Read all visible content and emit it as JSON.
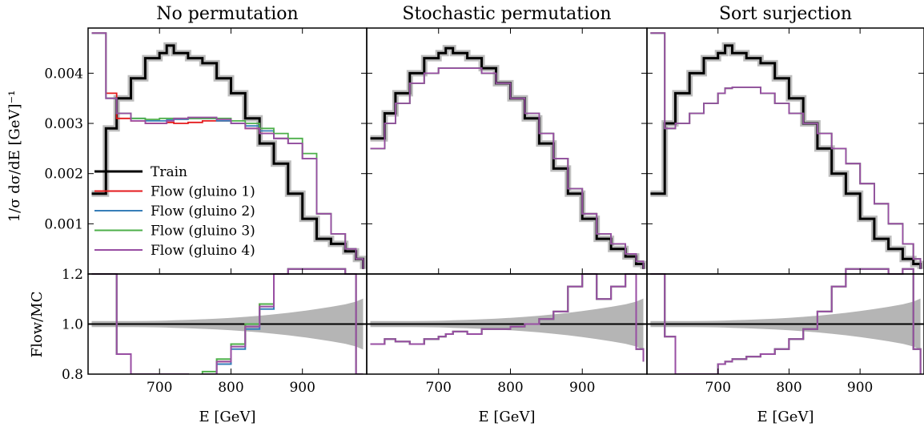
{
  "figure": {
    "ylabel_main": "1/σ dσ/dE [GeV]⁻¹",
    "ylabel_ratio": "Flow/MC",
    "xlabel": "E [GeV]"
  },
  "legend": {
    "entries": [
      {
        "label": "Train",
        "color": "#000000"
      },
      {
        "label": "Flow (gluino 1)",
        "color": "#e41a1c"
      },
      {
        "label": "Flow (gluino 2)",
        "color": "#377eb8"
      },
      {
        "label": "Flow (gluino 3)",
        "color": "#4daf4a"
      },
      {
        "label": "Flow (gluino 4)",
        "color": "#984ea3"
      }
    ]
  },
  "chart_data": [
    {
      "type": "line",
      "title": "No permutation",
      "xlabel": "E_g̃ [GeV]",
      "ylabel": "1/σ dσ/dE_g̃ [GeV]^-1",
      "xlim": [
        600,
        990
      ],
      "ylim": [
        0,
        0.0049
      ],
      "ratio_ylim": [
        0.8,
        1.2
      ],
      "x": [
        605,
        625,
        640,
        660,
        680,
        700,
        710,
        720,
        740,
        760,
        780,
        800,
        820,
        840,
        860,
        880,
        900,
        920,
        940,
        960,
        975,
        985
      ],
      "series": [
        {
          "name": "Train",
          "values": [
            0.0016,
            0.0029,
            0.0035,
            0.0039,
            0.0043,
            0.0044,
            0.00455,
            0.0044,
            0.0043,
            0.0042,
            0.0039,
            0.0036,
            0.0031,
            0.0026,
            0.0022,
            0.0016,
            0.0011,
            0.0007,
            0.0006,
            0.00045,
            0.0003,
            0.0001
          ]
        },
        {
          "name": "Flow (gluino 1)",
          "values": [
            0.0048,
            0.0036,
            0.0031,
            0.00305,
            0.003,
            0.003,
            0.00302,
            0.003,
            0.00302,
            0.00305,
            0.00305,
            0.003,
            0.0029,
            0.0028,
            0.0027,
            0.0026,
            0.0023,
            0.0012,
            0.0008,
            0.0005,
            0.0003,
            0.0001
          ]
        },
        {
          "name": "Flow (gluino 2)",
          "values": [
            0.0048,
            0.0035,
            0.0032,
            0.0031,
            0.00305,
            0.00305,
            0.00307,
            0.00308,
            0.0031,
            0.0031,
            0.00305,
            0.003,
            0.00295,
            0.00285,
            0.0027,
            0.0026,
            0.0023,
            0.0012,
            0.0008,
            0.0005,
            0.0003,
            0.0001
          ]
        },
        {
          "name": "Flow (gluino 3)",
          "values": [
            0.0048,
            0.0035,
            0.0032,
            0.0031,
            0.00308,
            0.0031,
            0.0031,
            0.0031,
            0.0031,
            0.0031,
            0.0031,
            0.00305,
            0.003,
            0.0029,
            0.0028,
            0.0027,
            0.0024,
            0.0012,
            0.0008,
            0.0005,
            0.0003,
            0.0001
          ]
        },
        {
          "name": "Flow (gluino 4)",
          "values": [
            0.0048,
            0.0035,
            0.0032,
            0.00305,
            0.003,
            0.003,
            0.00305,
            0.0031,
            0.00312,
            0.00312,
            0.00308,
            0.003,
            0.0029,
            0.0028,
            0.0027,
            0.0026,
            0.0023,
            0.0012,
            0.0008,
            0.0005,
            0.0003,
            0.0001
          ]
        }
      ],
      "ratio_series": [
        {
          "name": "Flow (gluino 1)",
          "values": [
            1.2,
            1.2,
            0.88,
            0.8,
            0.8,
            0.8,
            0.8,
            0.8,
            0.76,
            0.8,
            0.85,
            0.92,
            1.0,
            1.08,
            1.2,
            1.3,
            1.5,
            1.3,
            1.3,
            1.2,
            0.8,
            0.8
          ]
        },
        {
          "name": "Flow (gluino 2)",
          "values": [
            1.2,
            1.2,
            0.88,
            0.8,
            0.8,
            0.8,
            0.8,
            0.8,
            0.78,
            0.8,
            0.84,
            0.9,
            0.98,
            1.06,
            1.2,
            1.3,
            1.5,
            1.3,
            1.3,
            1.2,
            0.8,
            0.8
          ]
        },
        {
          "name": "Flow (gluino 3)",
          "values": [
            1.2,
            1.2,
            0.88,
            0.8,
            0.8,
            0.8,
            0.8,
            0.8,
            0.78,
            0.81,
            0.86,
            0.92,
            1.0,
            1.08,
            1.2,
            1.3,
            1.5,
            1.3,
            1.3,
            1.2,
            0.8,
            0.8
          ]
        },
        {
          "name": "Flow (gluino 4)",
          "values": [
            1.2,
            1.2,
            0.88,
            0.8,
            0.8,
            0.8,
            0.8,
            0.8,
            0.77,
            0.8,
            0.85,
            0.91,
            0.99,
            1.07,
            1.2,
            1.3,
            1.5,
            1.3,
            1.3,
            1.2,
            0.8,
            0.8
          ]
        }
      ]
    },
    {
      "type": "line",
      "title": "Stochastic permutation",
      "xlabel": "E_g̃ [GeV]",
      "xlim": [
        600,
        990
      ],
      "ylim": [
        0,
        0.0049
      ],
      "ratio_ylim": [
        0.8,
        1.2
      ],
      "x": [
        605,
        625,
        640,
        660,
        680,
        700,
        710,
        720,
        740,
        760,
        780,
        800,
        820,
        840,
        860,
        880,
        900,
        920,
        940,
        960,
        975,
        985
      ],
      "series": [
        {
          "name": "Train",
          "values": [
            0.0027,
            0.0032,
            0.0036,
            0.004,
            0.0043,
            0.0044,
            0.0045,
            0.0044,
            0.0043,
            0.0041,
            0.0038,
            0.0035,
            0.0031,
            0.0026,
            0.0021,
            0.0016,
            0.0011,
            0.0007,
            0.0005,
            0.00035,
            0.0002,
            0.0001
          ]
        },
        {
          "name": "Flow (gluino 1)",
          "values": [
            0.0025,
            0.003,
            0.0034,
            0.0038,
            0.004,
            0.0041,
            0.0041,
            0.0041,
            0.0041,
            0.004,
            0.0038,
            0.0035,
            0.0032,
            0.0028,
            0.0023,
            0.0017,
            0.0012,
            0.0008,
            0.0006,
            0.0004,
            0.00025,
            0.0001
          ]
        },
        {
          "name": "Flow (gluino 2)",
          "values": [
            0.0025,
            0.003,
            0.0034,
            0.0038,
            0.004,
            0.0041,
            0.0041,
            0.0041,
            0.0041,
            0.004,
            0.0038,
            0.0035,
            0.0032,
            0.0028,
            0.0023,
            0.0017,
            0.0012,
            0.0008,
            0.0006,
            0.0004,
            0.00025,
            0.0001
          ]
        },
        {
          "name": "Flow (gluino 3)",
          "values": [
            0.0025,
            0.003,
            0.0034,
            0.0038,
            0.004,
            0.0041,
            0.0041,
            0.0041,
            0.0041,
            0.004,
            0.0038,
            0.0035,
            0.0032,
            0.0028,
            0.0023,
            0.0017,
            0.0012,
            0.0008,
            0.0006,
            0.0004,
            0.00025,
            0.0001
          ]
        },
        {
          "name": "Flow (gluino 4)",
          "values": [
            0.0025,
            0.003,
            0.0034,
            0.0038,
            0.004,
            0.0041,
            0.0041,
            0.0041,
            0.0041,
            0.004,
            0.0038,
            0.0035,
            0.0032,
            0.0028,
            0.0023,
            0.0017,
            0.0012,
            0.0008,
            0.0006,
            0.0004,
            0.00025,
            0.0001
          ]
        }
      ],
      "ratio_series": [
        {
          "name": "Flow (gluino 1)",
          "values": [
            0.92,
            0.94,
            0.93,
            0.92,
            0.94,
            0.95,
            0.96,
            0.97,
            0.96,
            0.98,
            0.98,
            0.99,
            1.0,
            1.02,
            1.05,
            1.15,
            1.2,
            1.1,
            1.15,
            1.2,
            0.9,
            0.85
          ]
        },
        {
          "name": "Flow (gluino 2)",
          "values": [
            0.92,
            0.94,
            0.93,
            0.92,
            0.94,
            0.95,
            0.96,
            0.97,
            0.96,
            0.98,
            0.98,
            0.99,
            1.0,
            1.02,
            1.05,
            1.15,
            1.2,
            1.1,
            1.15,
            1.2,
            0.9,
            0.85
          ]
        },
        {
          "name": "Flow (gluino 3)",
          "values": [
            0.92,
            0.94,
            0.93,
            0.92,
            0.94,
            0.95,
            0.96,
            0.97,
            0.96,
            0.98,
            0.98,
            0.99,
            1.0,
            1.02,
            1.05,
            1.15,
            1.2,
            1.1,
            1.15,
            1.2,
            0.9,
            0.85
          ]
        },
        {
          "name": "Flow (gluino 4)",
          "values": [
            0.92,
            0.94,
            0.93,
            0.92,
            0.94,
            0.95,
            0.96,
            0.97,
            0.96,
            0.98,
            0.98,
            0.99,
            1.0,
            1.02,
            1.05,
            1.15,
            1.2,
            1.1,
            1.15,
            1.2,
            0.9,
            0.85
          ]
        }
      ]
    },
    {
      "type": "line",
      "title": "Sort surjection",
      "xlabel": "E_g̃ [GeV]",
      "xlim": [
        600,
        990
      ],
      "ylim": [
        0,
        0.0049
      ],
      "ratio_ylim": [
        0.8,
        1.2
      ],
      "x": [
        605,
        625,
        640,
        660,
        680,
        700,
        710,
        720,
        740,
        760,
        780,
        800,
        820,
        840,
        860,
        880,
        900,
        920,
        940,
        960,
        975,
        985
      ],
      "series": [
        {
          "name": "Train",
          "values": [
            0.0016,
            0.003,
            0.0036,
            0.004,
            0.0043,
            0.0044,
            0.00455,
            0.0044,
            0.0043,
            0.0042,
            0.0039,
            0.0035,
            0.003,
            0.0025,
            0.002,
            0.0016,
            0.0011,
            0.0007,
            0.0005,
            0.0003,
            0.0002,
            0.0001
          ]
        },
        {
          "name": "Flow (gluino 1)",
          "values": [
            0.0048,
            0.0029,
            0.003,
            0.0032,
            0.0034,
            0.0036,
            0.0037,
            0.00372,
            0.00372,
            0.0036,
            0.0034,
            0.0032,
            0.003,
            0.0028,
            0.0025,
            0.0022,
            0.0018,
            0.0014,
            0.001,
            0.0006,
            0.0003,
            0.0001
          ]
        },
        {
          "name": "Flow (gluino 2)",
          "values": [
            0.0048,
            0.0029,
            0.003,
            0.0032,
            0.0034,
            0.0036,
            0.0037,
            0.00372,
            0.00372,
            0.0036,
            0.0034,
            0.0032,
            0.003,
            0.0028,
            0.0025,
            0.0022,
            0.0018,
            0.0014,
            0.001,
            0.0006,
            0.0003,
            0.0001
          ]
        },
        {
          "name": "Flow (gluino 3)",
          "values": [
            0.0048,
            0.0029,
            0.003,
            0.0032,
            0.0034,
            0.0036,
            0.0037,
            0.00372,
            0.00372,
            0.0036,
            0.0034,
            0.0032,
            0.003,
            0.0028,
            0.0025,
            0.0022,
            0.0018,
            0.0014,
            0.001,
            0.0006,
            0.0003,
            0.0001
          ]
        },
        {
          "name": "Flow (gluino 4)",
          "values": [
            0.0048,
            0.0029,
            0.003,
            0.0032,
            0.0034,
            0.0036,
            0.0037,
            0.00372,
            0.00372,
            0.0036,
            0.0034,
            0.0032,
            0.003,
            0.0028,
            0.0025,
            0.0022,
            0.0018,
            0.0014,
            0.001,
            0.0006,
            0.0003,
            0.0001
          ]
        }
      ],
      "ratio_series": [
        {
          "name": "Flow (gluino 1)",
          "values": [
            1.2,
            0.95,
            0.8,
            0.8,
            0.8,
            0.84,
            0.85,
            0.86,
            0.87,
            0.88,
            0.9,
            0.94,
            0.98,
            1.05,
            1.15,
            1.3,
            1.4,
            1.3,
            1.2,
            1.3,
            0.9,
            0.8
          ]
        },
        {
          "name": "Flow (gluino 2)",
          "values": [
            1.2,
            0.95,
            0.8,
            0.8,
            0.8,
            0.84,
            0.85,
            0.86,
            0.87,
            0.88,
            0.9,
            0.94,
            0.98,
            1.05,
            1.15,
            1.3,
            1.4,
            1.3,
            1.2,
            1.3,
            0.9,
            0.8
          ]
        },
        {
          "name": "Flow (gluino 3)",
          "values": [
            1.2,
            0.95,
            0.8,
            0.8,
            0.8,
            0.84,
            0.85,
            0.86,
            0.87,
            0.88,
            0.9,
            0.94,
            0.98,
            1.05,
            1.15,
            1.3,
            1.4,
            1.3,
            1.2,
            1.3,
            0.9,
            0.8
          ]
        },
        {
          "name": "Flow (gluino 4)",
          "values": [
            1.2,
            0.95,
            0.8,
            0.8,
            0.8,
            0.84,
            0.85,
            0.86,
            0.87,
            0.88,
            0.9,
            0.94,
            0.98,
            1.05,
            1.15,
            1.3,
            1.4,
            1.3,
            1.2,
            1.3,
            0.9,
            0.8
          ]
        }
      ]
    }
  ],
  "axes": {
    "main_yticks": [
      0.001,
      0.002,
      0.003,
      0.004
    ],
    "main_ytick_labels": [
      "0.001",
      "0.002",
      "0.003",
      "0.004"
    ],
    "ratio_yticks": [
      0.8,
      1.0,
      1.2
    ],
    "ratio_ytick_labels": [
      "0.8",
      "1.0",
      "1.2"
    ],
    "xticks": [
      700,
      800,
      900
    ],
    "xtick_labels": [
      "700",
      "800",
      "900"
    ]
  }
}
